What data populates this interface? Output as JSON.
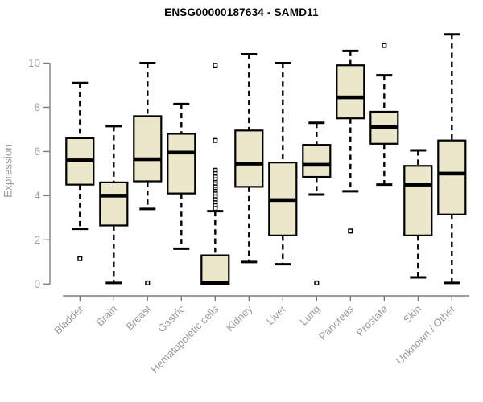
{
  "page": {
    "title": "ENSG00000187634 - SAMD11"
  },
  "chart_data": {
    "type": "boxplot",
    "title": "ENSG00000187634 - SAMD11",
    "ylabel": "Expression",
    "xlabel": "",
    "yticks": [
      0,
      2,
      4,
      6,
      8,
      10
    ],
    "ylim": [
      -0.5,
      11.6
    ],
    "grid": false,
    "legend": false,
    "categories": [
      "Bladder",
      "Brain",
      "Breast",
      "Gastric",
      "Hematopoietic cells",
      "Kidney",
      "Liver",
      "Lung",
      "Pancreas",
      "Prostate",
      "Skin",
      "Unknown / Other"
    ],
    "boxes": [
      {
        "category": "Bladder",
        "min": 2.5,
        "q1": 4.5,
        "median": 5.6,
        "q3": 6.6,
        "max": 9.1,
        "outliers": [
          1.15
        ]
      },
      {
        "category": "Brain",
        "min": 0.05,
        "q1": 2.65,
        "median": 4.0,
        "q3": 4.6,
        "max": 7.15,
        "outliers": []
      },
      {
        "category": "Breast",
        "min": 3.4,
        "q1": 4.65,
        "median": 5.65,
        "q3": 7.6,
        "max": 10.0,
        "outliers": [
          0.05
        ]
      },
      {
        "category": "Gastric",
        "min": 1.6,
        "q1": 4.1,
        "median": 5.95,
        "q3": 6.8,
        "max": 8.15,
        "outliers": []
      },
      {
        "category": "Hematopoietic cells",
        "min": 0.0,
        "q1": 0.0,
        "median": 0.05,
        "q3": 1.3,
        "max": 3.3,
        "outliers": [
          9.9,
          6.5,
          5.15,
          5.0,
          4.85,
          4.72,
          4.6,
          4.5,
          4.4,
          4.3,
          4.2,
          4.08,
          3.95,
          3.82,
          3.68,
          3.55,
          3.42
        ]
      },
      {
        "category": "Kidney",
        "min": 1.0,
        "q1": 4.4,
        "median": 5.45,
        "q3": 6.95,
        "max": 10.4,
        "outliers": []
      },
      {
        "category": "Liver",
        "min": 0.9,
        "q1": 2.2,
        "median": 3.8,
        "q3": 5.5,
        "max": 10.0,
        "outliers": []
      },
      {
        "category": "Lung",
        "min": 4.05,
        "q1": 4.85,
        "median": 5.4,
        "q3": 6.3,
        "max": 7.3,
        "outliers": [
          0.05
        ]
      },
      {
        "category": "Pancreas",
        "min": 4.2,
        "q1": 7.5,
        "median": 8.45,
        "q3": 9.9,
        "max": 10.55,
        "outliers": [
          2.4
        ]
      },
      {
        "category": "Prostate",
        "min": 4.5,
        "q1": 6.35,
        "median": 7.1,
        "q3": 7.8,
        "max": 9.45,
        "outliers": [
          10.8
        ]
      },
      {
        "category": "Skin",
        "min": 0.3,
        "q1": 2.2,
        "median": 4.5,
        "q3": 5.35,
        "max": 6.05,
        "outliers": []
      },
      {
        "category": "Unknown / Other",
        "min": 0.05,
        "q1": 3.15,
        "median": 5.0,
        "q3": 6.5,
        "max": 11.3,
        "outliers": []
      }
    ]
  },
  "colors": {
    "background": "#ffffff",
    "box_fill": "#ece7cb",
    "box_stroke": "#000000",
    "median": "#000000",
    "whisker": "#000000",
    "outlier_stroke": "#000000",
    "outlier_fill": "#ffffff",
    "axis_line": "#7f7f7f",
    "ytick_label": "#96a2b3",
    "xtick_label": "#9a9a9a",
    "axis_title": "#9a9a9a",
    "title": "#000000"
  }
}
